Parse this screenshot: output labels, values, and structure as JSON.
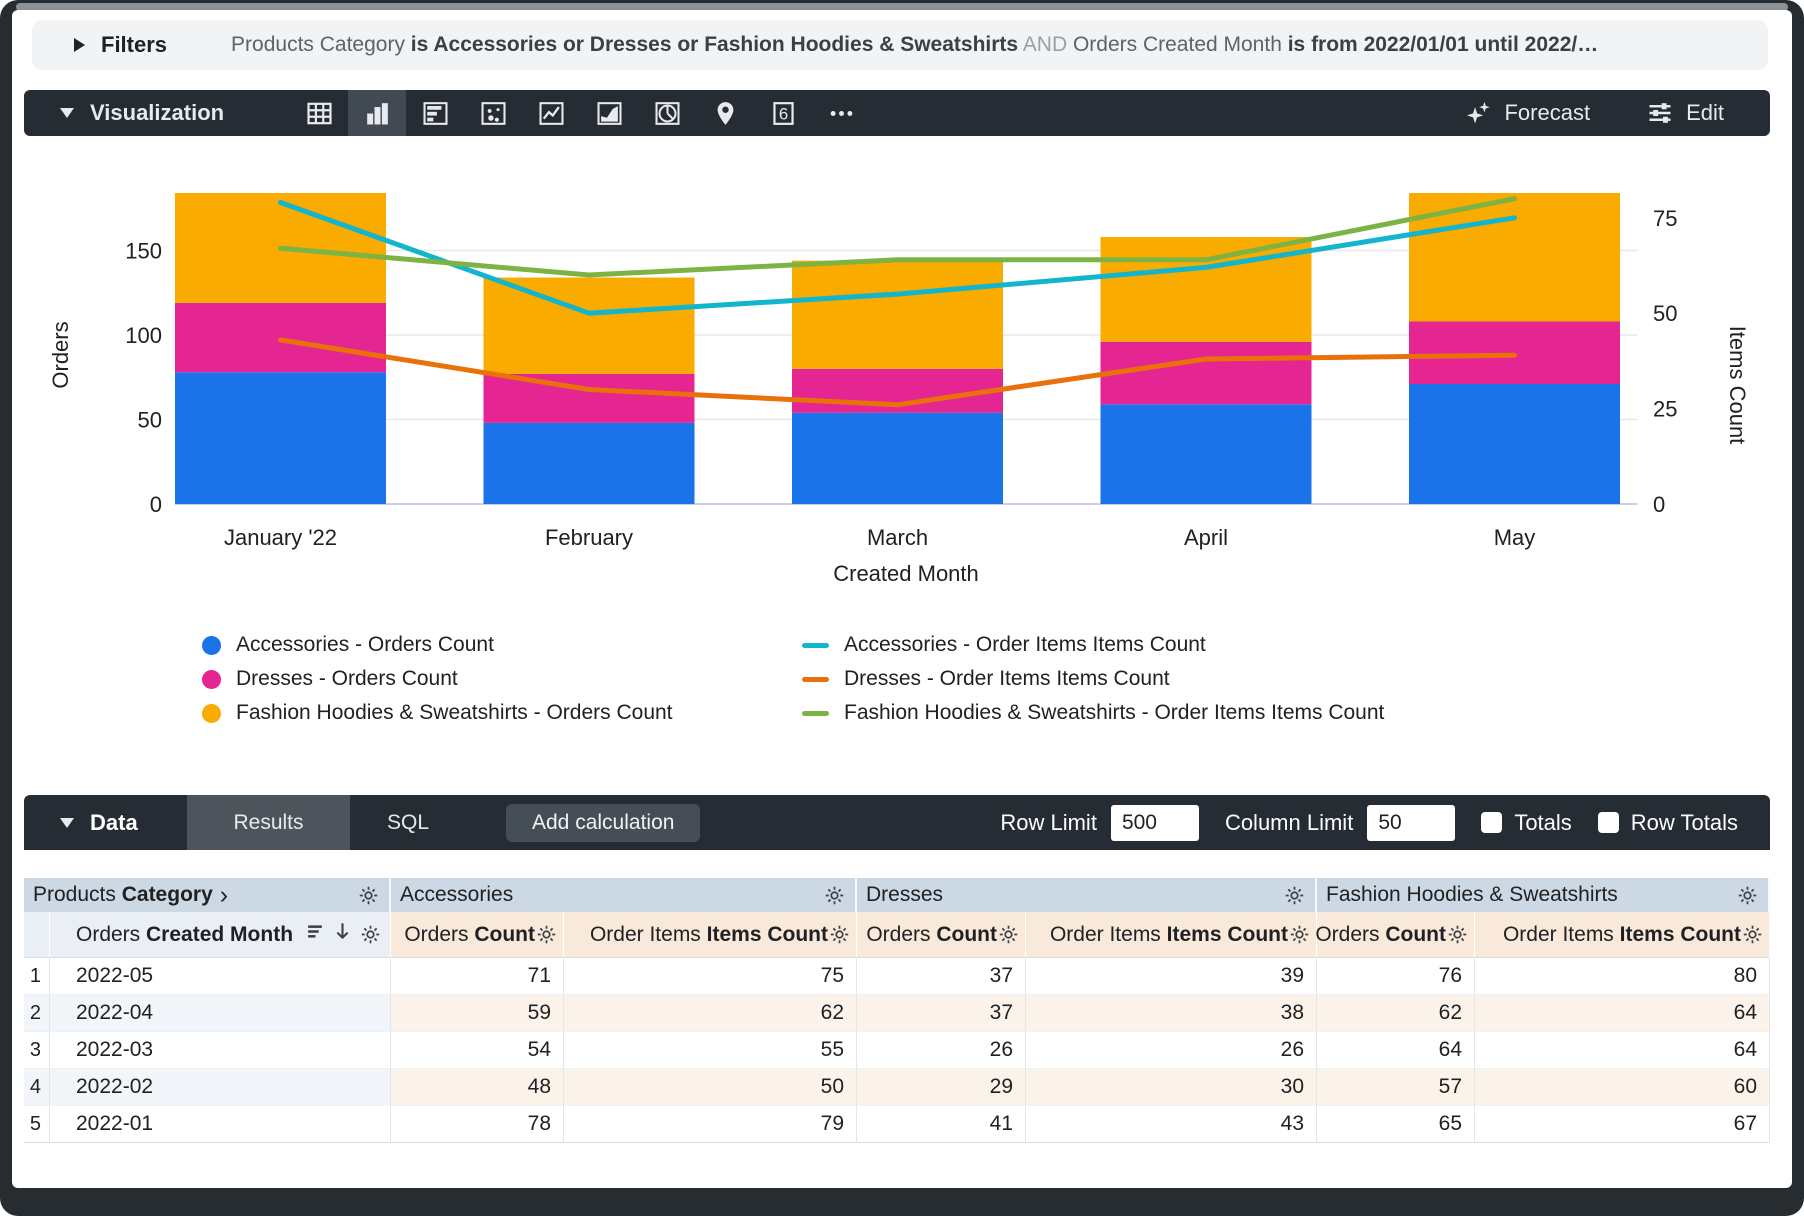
{
  "filters_bar": {
    "label": "Filters",
    "summary_parts": [
      {
        "text": "Products Category ",
        "weight": "normal"
      },
      {
        "text": "is Accessories or Dresses or Fashion Hoodies & Sweatshirts",
        "weight": "bold"
      },
      {
        "text": " AND ",
        "weight": "faint"
      },
      {
        "text": "Orders Created Month ",
        "weight": "normal"
      },
      {
        "text": "is from 2022/01/01 until 2022/…",
        "weight": "bold"
      }
    ]
  },
  "viz_bar": {
    "label": "Visualization",
    "icons": [
      {
        "name": "table",
        "selected": false
      },
      {
        "name": "column",
        "selected": true
      },
      {
        "name": "bar",
        "selected": false
      },
      {
        "name": "scatter",
        "selected": false
      },
      {
        "name": "line",
        "selected": false
      },
      {
        "name": "area",
        "selected": false
      },
      {
        "name": "pie",
        "selected": false
      },
      {
        "name": "map",
        "selected": false
      },
      {
        "name": "single-value",
        "selected": false,
        "glyph": "6"
      },
      {
        "name": "more",
        "selected": false
      }
    ],
    "forecast_label": "Forecast",
    "edit_label": "Edit"
  },
  "chart_data": {
    "type": "bar",
    "subtype": "stacked-columns-with-lines",
    "categories": [
      "January '22",
      "February",
      "March",
      "April",
      "May"
    ],
    "xlabel": "Created Month",
    "grid": true,
    "legend_position": "bottom",
    "y_left": {
      "label": "Orders",
      "ticks": [
        0,
        50,
        100,
        150
      ],
      "max": 206
    },
    "y_right": {
      "label": "Items Count",
      "ticks": [
        0,
        25,
        50,
        75
      ],
      "max": 92
    },
    "series": [
      {
        "name": "Accessories - Orders Count",
        "render": "bar",
        "axis": "left",
        "color": "#1a73e8",
        "values": [
          78,
          48,
          54,
          59,
          71
        ]
      },
      {
        "name": "Dresses - Orders Count",
        "render": "bar",
        "axis": "left",
        "color": "#e52592",
        "values": [
          41,
          29,
          26,
          37,
          37
        ]
      },
      {
        "name": "Fashion Hoodies & Sweatshirts - Orders Count",
        "render": "bar",
        "axis": "left",
        "color": "#f9ab00",
        "values": [
          65,
          57,
          64,
          62,
          76
        ]
      },
      {
        "name": "Accessories - Order Items Items Count",
        "render": "line",
        "axis": "right",
        "color": "#12b5cb",
        "values": [
          79,
          50,
          55,
          62,
          75
        ]
      },
      {
        "name": "Dresses - Order Items Items Count",
        "render": "line",
        "axis": "right",
        "color": "#e8710a",
        "values": [
          43,
          30,
          26,
          38,
          39
        ]
      },
      {
        "name": "Fashion Hoodies & Sweatshirts - Order Items Items Count",
        "render": "line",
        "axis": "right",
        "color": "#7cb342",
        "values": [
          67,
          60,
          64,
          64,
          80
        ]
      }
    ]
  },
  "data_bar": {
    "label": "Data",
    "tabs": [
      {
        "label": "Results",
        "active": true
      },
      {
        "label": "SQL",
        "active": false
      }
    ],
    "add_calculation_label": "Add calculation",
    "row_limit": {
      "label": "Row Limit",
      "value": "500"
    },
    "column_limit": {
      "label": "Column Limit",
      "value": "50"
    },
    "totals": {
      "label": "Totals",
      "checked": false
    },
    "row_totals": {
      "label": "Row Totals",
      "checked": false
    }
  },
  "table": {
    "groups": [
      {
        "normal": "Products ",
        "bold": "Category",
        "chevron": "›",
        "kind": "dimension"
      },
      {
        "normal": "Accessories",
        "bold": "",
        "kind": "measure"
      },
      {
        "normal": "Dresses",
        "bold": "",
        "kind": "measure"
      },
      {
        "normal": "Fashion Hoodies & Sweatshirts",
        "bold": "",
        "kind": "measure"
      }
    ],
    "sub_headers": [
      {
        "normal": "Orders ",
        "bold": "Created Month",
        "kind": "dimension"
      },
      {
        "normal": "Orders ",
        "bold": "Count",
        "kind": "measure"
      },
      {
        "normal": "Order Items ",
        "bold": "Items Count",
        "kind": "measure"
      },
      {
        "normal": "Orders ",
        "bold": "Count",
        "kind": "measure"
      },
      {
        "normal": "Order Items ",
        "bold": "Items Count",
        "kind": "measure"
      },
      {
        "normal": "Orders ",
        "bold": "Count",
        "kind": "measure"
      },
      {
        "normal": "Order Items ",
        "bold": "Items Count",
        "kind": "measure"
      }
    ],
    "rows": [
      {
        "num": "1",
        "dimension": "2022-05",
        "values": [
          71,
          75,
          37,
          39,
          76,
          80
        ]
      },
      {
        "num": "2",
        "dimension": "2022-04",
        "values": [
          59,
          62,
          37,
          38,
          62,
          64
        ]
      },
      {
        "num": "3",
        "dimension": "2022-03",
        "values": [
          54,
          55,
          26,
          26,
          64,
          64
        ]
      },
      {
        "num": "4",
        "dimension": "2022-02",
        "values": [
          48,
          50,
          29,
          30,
          57,
          60
        ]
      },
      {
        "num": "5",
        "dimension": "2022-01",
        "values": [
          78,
          79,
          41,
          43,
          65,
          67
        ]
      }
    ]
  }
}
